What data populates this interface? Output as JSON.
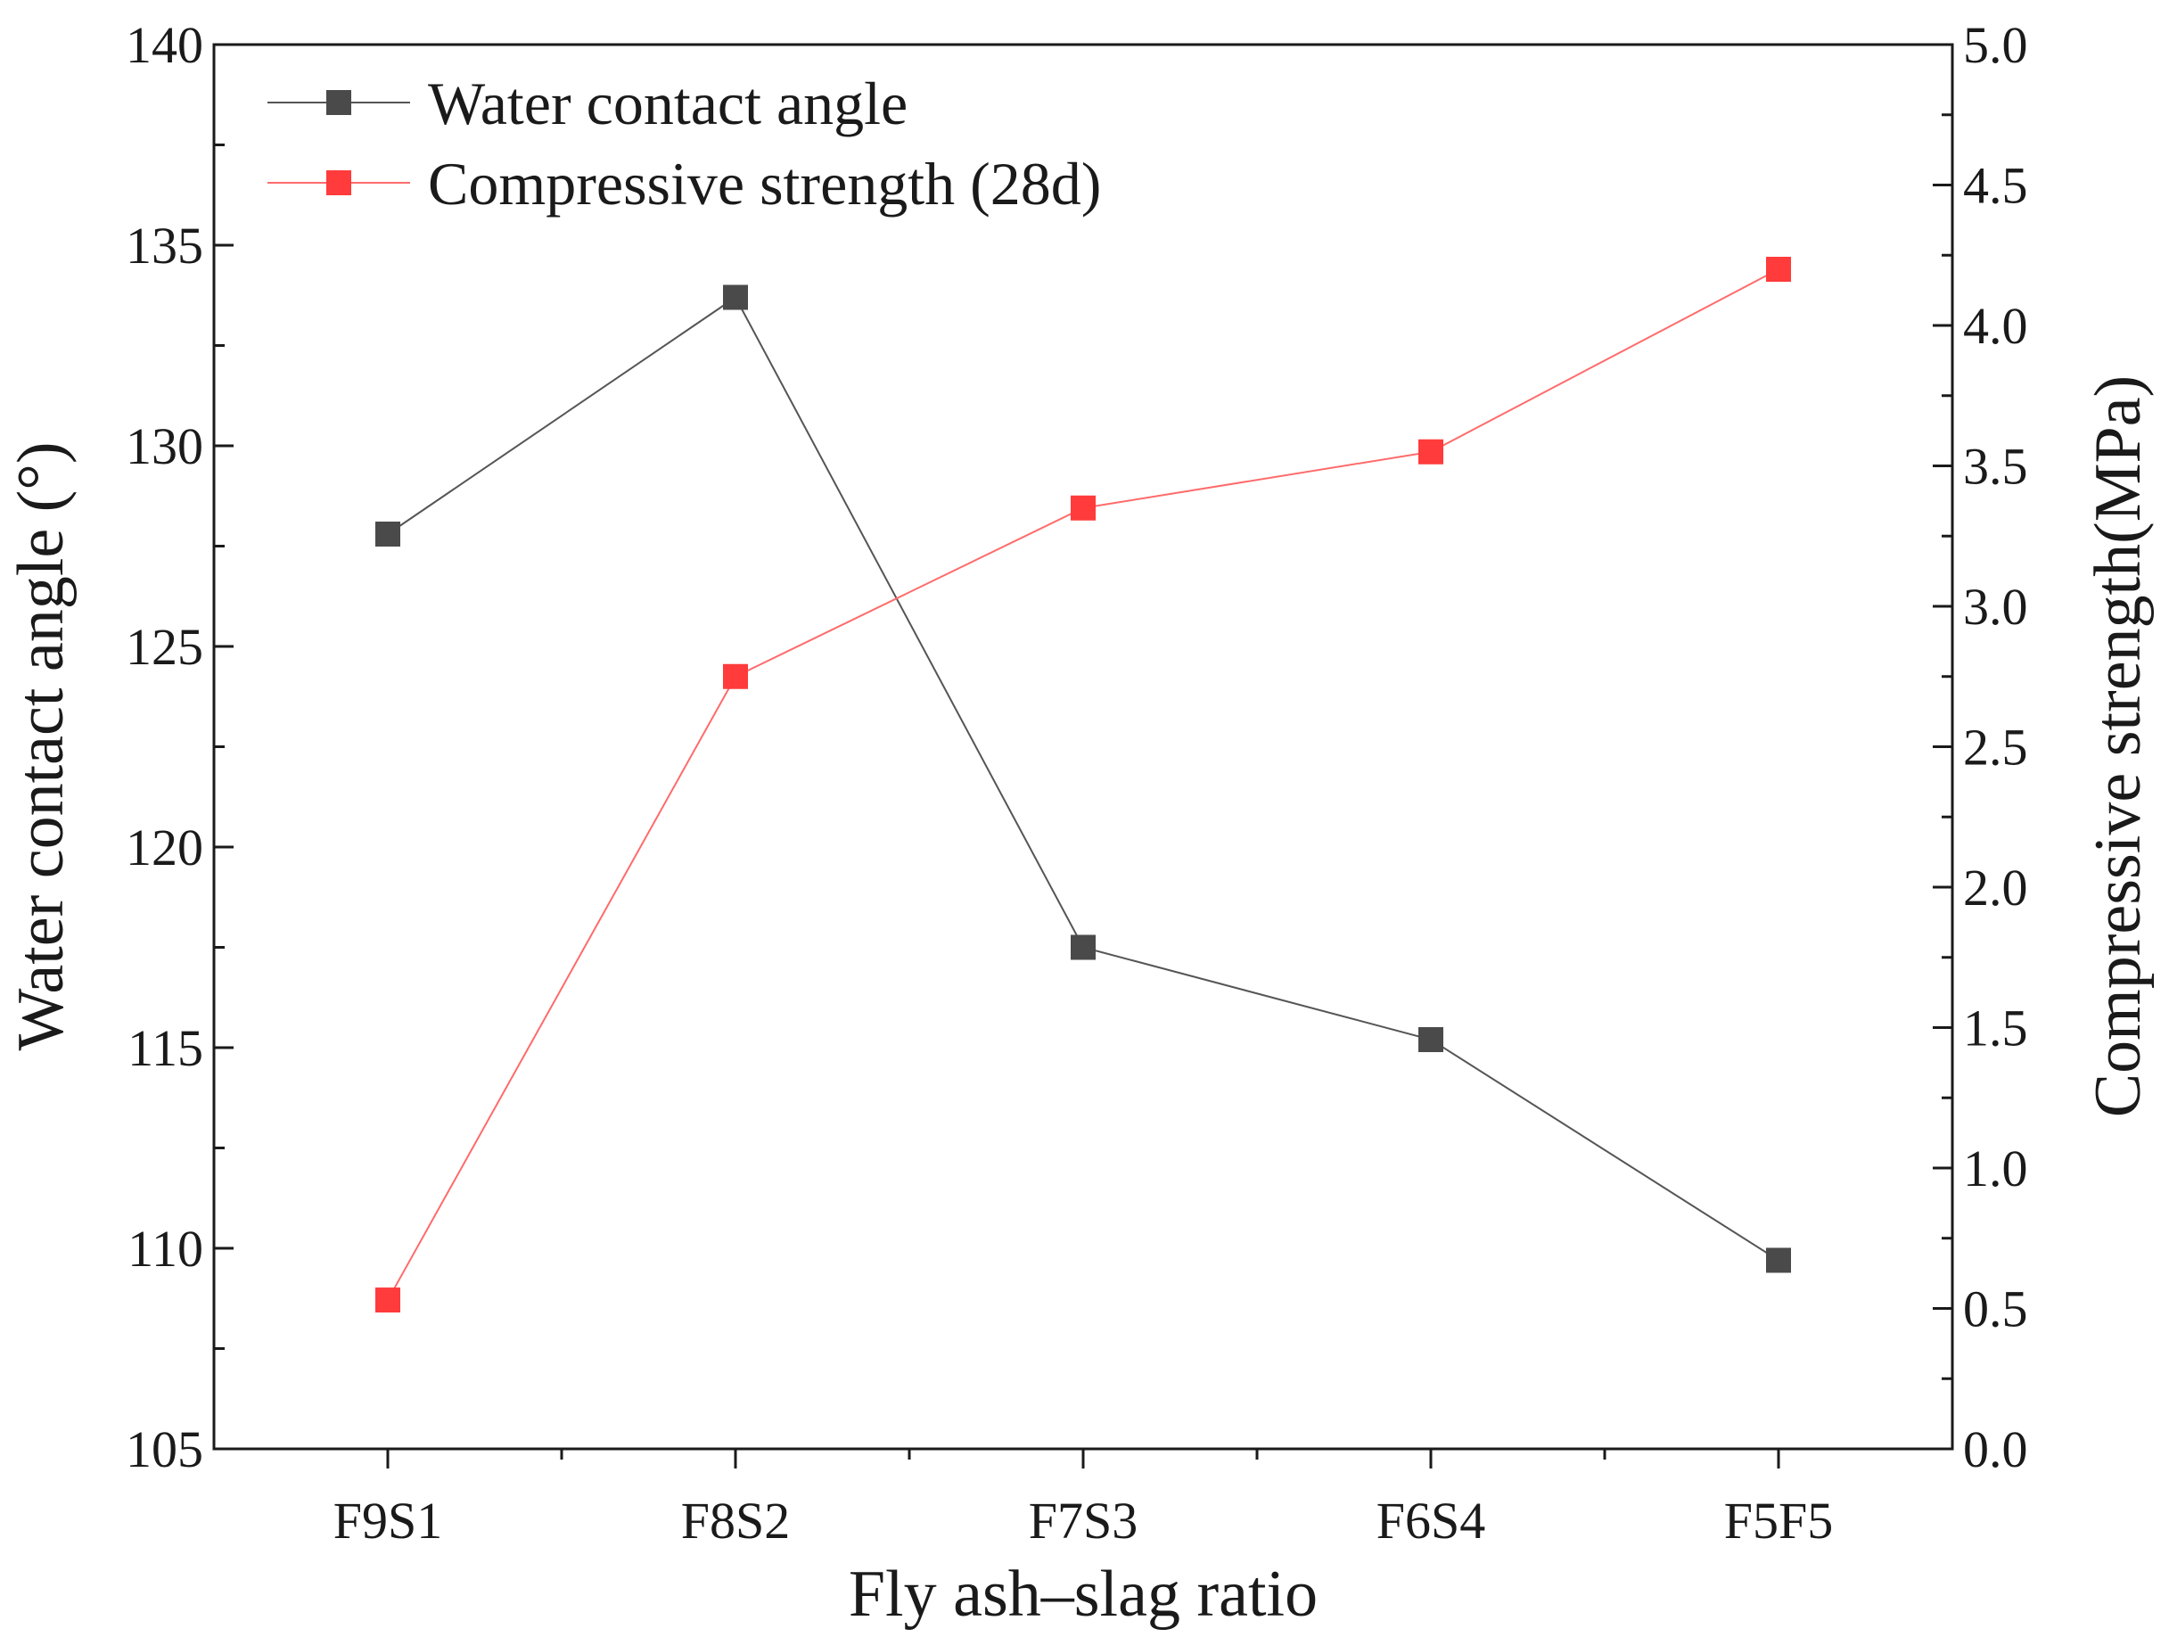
{
  "chart_data": {
    "type": "line",
    "title": "",
    "xlabel": "Fly ash–slag ratio",
    "ylabel": "Water contact angle (°)",
    "y2label": "Compressive strength(MPa)",
    "categories": [
      "F9S1",
      "F8S2",
      "F7S3",
      "F6S4",
      "F5F5"
    ],
    "ylim": [
      105,
      140
    ],
    "y2lim": [
      0.0,
      5.0
    ],
    "yticks": [
      "105",
      "110",
      "115",
      "120",
      "125",
      "130",
      "135",
      "140"
    ],
    "y2ticks": [
      "0.0",
      "0.5",
      "1.0",
      "1.5",
      "2.0",
      "2.5",
      "3.0",
      "3.5",
      "4.0",
      "4.5",
      "5.0"
    ],
    "series": [
      {
        "name": "Water contact angle",
        "axis": "left",
        "color": "#4a4a4a",
        "values": [
          127.8,
          133.7,
          117.5,
          115.2,
          109.7
        ]
      },
      {
        "name": "Compressive strength (28d)",
        "axis": "right",
        "color": "#ff3b3b",
        "values": [
          0.53,
          2.75,
          3.35,
          3.55,
          4.2
        ]
      }
    ],
    "legend_position": "top-left",
    "grid": false
  }
}
